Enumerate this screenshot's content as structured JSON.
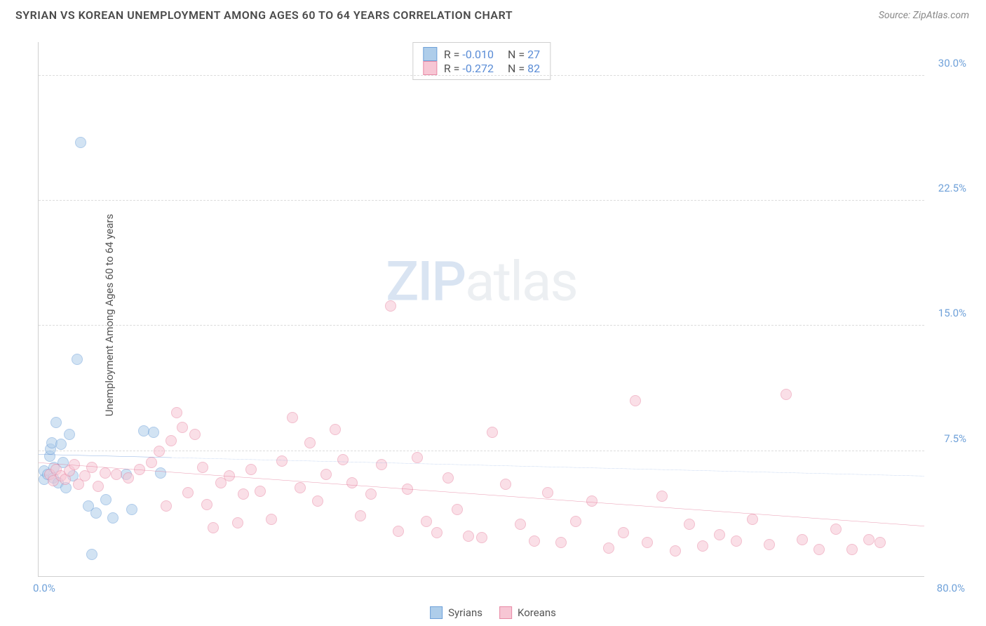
{
  "header": {
    "title": "SYRIAN VS KOREAN UNEMPLOYMENT AMONG AGES 60 TO 64 YEARS CORRELATION CHART",
    "source": "Source: ZipAtlas.com"
  },
  "chart": {
    "type": "scatter",
    "ylabel": "Unemployment Among Ages 60 to 64 years",
    "xlim": [
      0,
      80
    ],
    "ylim": [
      0,
      32
    ],
    "yticks": [
      {
        "v": 7.5,
        "label": "7.5%"
      },
      {
        "v": 15.0,
        "label": "15.0%"
      },
      {
        "v": 22.5,
        "label": "22.5%"
      },
      {
        "v": 30.0,
        "label": "30.0%"
      }
    ],
    "xticks": [
      {
        "v": 0,
        "label": "0.0%",
        "align": "left"
      },
      {
        "v": 80,
        "label": "80.0%",
        "align": "right"
      }
    ],
    "grid_color": "#dcdcdc",
    "background_color": "#ffffff",
    "axis_color": "#cfcfcf",
    "tick_color": "#6fa1d9",
    "marker_radius": 8,
    "marker_opacity": 0.55,
    "series": [
      {
        "name": "Syrians",
        "fill": "#aecdea",
        "stroke": "#6fa1d9",
        "trend_color": "#5a8cd6",
        "trend_dash": "6 6",
        "trend_solid_until_x": 12,
        "trend": {
          "y_at_x0": 7.3,
          "y_at_xmax": 6.0
        },
        "R": "-0.010",
        "N": "27",
        "points": [
          [
            0.5,
            5.8
          ],
          [
            0.5,
            6.3
          ],
          [
            0.8,
            6.1
          ],
          [
            1.0,
            7.2
          ],
          [
            1.1,
            7.6
          ],
          [
            1.2,
            8.0
          ],
          [
            1.3,
            5.9
          ],
          [
            1.4,
            6.5
          ],
          [
            1.6,
            9.2
          ],
          [
            1.8,
            5.6
          ],
          [
            2.0,
            7.9
          ],
          [
            2.2,
            6.8
          ],
          [
            2.5,
            5.3
          ],
          [
            2.8,
            8.5
          ],
          [
            3.1,
            6.0
          ],
          [
            3.5,
            13.0
          ],
          [
            3.8,
            26.0
          ],
          [
            4.5,
            4.2
          ],
          [
            4.8,
            1.3
          ],
          [
            5.2,
            3.8
          ],
          [
            6.1,
            4.6
          ],
          [
            6.7,
            3.5
          ],
          [
            7.9,
            6.1
          ],
          [
            8.4,
            4.0
          ],
          [
            9.5,
            8.7
          ],
          [
            10.4,
            8.6
          ],
          [
            11.0,
            6.2
          ]
        ]
      },
      {
        "name": "Koreans",
        "fill": "#f7c6d4",
        "stroke": "#e88aa6",
        "trend_color": "#e06a8c",
        "trend_dash": "",
        "trend_solid_until_x": 80,
        "trend": {
          "y_at_x0": 6.8,
          "y_at_xmax": 3.0
        },
        "R": "-0.272",
        "N": "82",
        "points": [
          [
            1.0,
            6.1
          ],
          [
            1.3,
            5.7
          ],
          [
            1.6,
            6.4
          ],
          [
            2.0,
            6.0
          ],
          [
            2.4,
            5.8
          ],
          [
            2.8,
            6.3
          ],
          [
            3.2,
            6.7
          ],
          [
            3.6,
            5.5
          ],
          [
            4.2,
            6.0
          ],
          [
            4.8,
            6.5
          ],
          [
            5.4,
            5.4
          ],
          [
            6.0,
            6.2
          ],
          [
            7.0,
            6.1
          ],
          [
            8.1,
            5.9
          ],
          [
            9.1,
            6.4
          ],
          [
            10.2,
            6.8
          ],
          [
            10.9,
            7.5
          ],
          [
            11.5,
            4.2
          ],
          [
            12.0,
            8.1
          ],
          [
            12.5,
            9.8
          ],
          [
            13.0,
            8.9
          ],
          [
            13.5,
            5.0
          ],
          [
            14.1,
            8.5
          ],
          [
            14.8,
            6.5
          ],
          [
            15.2,
            4.3
          ],
          [
            15.8,
            2.9
          ],
          [
            16.5,
            5.6
          ],
          [
            17.2,
            6.0
          ],
          [
            18.0,
            3.2
          ],
          [
            18.5,
            4.9
          ],
          [
            19.2,
            6.4
          ],
          [
            20.0,
            5.1
          ],
          [
            21.0,
            3.4
          ],
          [
            22.0,
            6.9
          ],
          [
            22.9,
            9.5
          ],
          [
            23.6,
            5.3
          ],
          [
            24.5,
            8.0
          ],
          [
            25.2,
            4.5
          ],
          [
            26.0,
            6.1
          ],
          [
            26.8,
            8.8
          ],
          [
            27.5,
            7.0
          ],
          [
            28.3,
            5.6
          ],
          [
            29.1,
            3.6
          ],
          [
            30.0,
            4.9
          ],
          [
            31.0,
            6.7
          ],
          [
            31.8,
            16.2
          ],
          [
            32.5,
            2.7
          ],
          [
            33.3,
            5.2
          ],
          [
            34.2,
            7.1
          ],
          [
            35.0,
            3.3
          ],
          [
            36.0,
            2.6
          ],
          [
            37.0,
            5.9
          ],
          [
            37.8,
            4.0
          ],
          [
            38.8,
            2.4
          ],
          [
            40.0,
            2.3
          ],
          [
            41.0,
            8.6
          ],
          [
            42.2,
            5.5
          ],
          [
            43.5,
            3.1
          ],
          [
            44.8,
            2.1
          ],
          [
            46.0,
            5.0
          ],
          [
            47.2,
            2.0
          ],
          [
            48.5,
            3.3
          ],
          [
            50.0,
            4.5
          ],
          [
            51.5,
            1.7
          ],
          [
            52.8,
            2.6
          ],
          [
            53.9,
            10.5
          ],
          [
            55.0,
            2.0
          ],
          [
            56.3,
            4.8
          ],
          [
            57.5,
            1.5
          ],
          [
            58.8,
            3.1
          ],
          [
            60.0,
            1.8
          ],
          [
            61.5,
            2.5
          ],
          [
            63.0,
            2.1
          ],
          [
            64.5,
            3.4
          ],
          [
            66.0,
            1.9
          ],
          [
            67.5,
            10.9
          ],
          [
            69.0,
            2.2
          ],
          [
            70.5,
            1.6
          ],
          [
            72.0,
            2.8
          ],
          [
            73.5,
            1.6
          ],
          [
            75.0,
            2.2
          ],
          [
            76.0,
            2.0
          ]
        ]
      }
    ],
    "legend_top_labels": {
      "R": "R =",
      "N": "N ="
    },
    "legend_bottom": [
      "Syrians",
      "Koreans"
    ],
    "watermark": {
      "zip": "ZIP",
      "atlas": "atlas"
    }
  }
}
